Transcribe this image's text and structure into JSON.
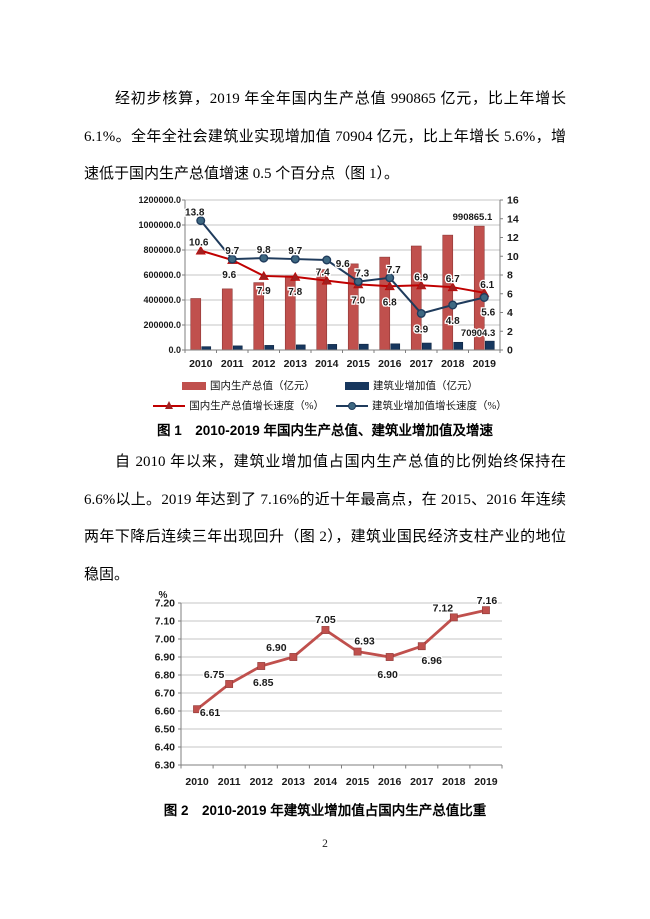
{
  "page_number": "2",
  "paragraphs": {
    "p1": "经初步核算，2019 年全年国内生产总值 990865 亿元，比上年增长 6.1%。全年全社会建筑业实现增加值 70904 亿元，比上年增长 5.6%，增速低于国内生产总值增速 0.5 个百分点（图 1）。",
    "p2": "自 2010 年以来，建筑业增加值占国内生产总值的比例始终保持在 6.6%以上。2019 年达到了 7.16%的近十年最高点，在 2015、2016 年连续两年下降后连续三年出现回升（图 2），建筑业国民经济支柱产业的地位稳固。"
  },
  "figure1": {
    "caption": "图 1　2010-2019 年国内生产总值、建筑业增加值及增速",
    "legend": [
      {
        "label": "国内生产总值（亿元）",
        "swatch": "bar",
        "color": "#C0504D"
      },
      {
        "label": "建筑业增加值（亿元）",
        "swatch": "bar",
        "color": "#17375E"
      },
      {
        "label": "国内生产总值增长速度（%）",
        "swatch": "line-triangle",
        "color": "#C00000",
        "marker_fill": "#A02020"
      },
      {
        "label": "建筑业增加值增长速度（%）",
        "swatch": "line-circle",
        "color": "#1F3B5C",
        "marker_fill": "#3E6882"
      }
    ]
  },
  "figure2": {
    "caption": "图 2　2010-2019 年建筑业增加值占国内生产总值比重"
  },
  "colors": {
    "grid": "#C6C6C6",
    "axis": "#7F7F7F",
    "label_text": "#1a1a1a",
    "page_bg": "#FFFFFF"
  },
  "chart_data": [
    {
      "type": "bar",
      "title": "2010-2019 年国内生产总值、建筑业增加值及增速",
      "categories": [
        "2010",
        "2011",
        "2012",
        "2013",
        "2014",
        "2015",
        "2016",
        "2017",
        "2018",
        "2019"
      ],
      "left_axis": {
        "min": 0,
        "max": 1200000,
        "step": 200000,
        "decimals": 1
      },
      "right_axis": {
        "min": 0,
        "max": 16,
        "step": 2,
        "decimals": 0
      },
      "grid": true,
      "legend_position": "bottom",
      "series": [
        {
          "name": "国内生产总值（亿元）",
          "kind": "bar",
          "axis": "left",
          "color": "#C0504D",
          "border": "#8C3836",
          "values": [
            412000,
            489000,
            539000,
            593000,
            643000,
            689000,
            743000,
            832000,
            919000,
            990865.1
          ],
          "end_label": {
            "text": "990865.1",
            "dx": 8,
            "dy": -6
          }
        },
        {
          "name": "建筑业增加值（亿元）",
          "kind": "bar",
          "axis": "left",
          "color": "#17375E",
          "border": "#0F2440",
          "values": [
            26700,
            33000,
            36900,
            40900,
            44900,
            46500,
            49500,
            55700,
            61800,
            70904.3
          ],
          "end_label": {
            "text": "70904.3",
            "dx": 11,
            "dy": -5
          }
        },
        {
          "name": "国内生产总值增长速度（%）",
          "kind": "line",
          "axis": "right",
          "color": "#C00000",
          "marker": "triangle",
          "marker_fill": "#A02020",
          "values": [
            10.6,
            9.6,
            7.9,
            7.8,
            7.4,
            7.0,
            6.8,
            6.9,
            6.7,
            6.1
          ],
          "label_decimals": 1,
          "label_offsets": [
            [
              -2,
              -8
            ],
            [
              -3,
              15
            ],
            [
              0,
              15
            ],
            [
              0,
              15
            ],
            [
              -4,
              -8
            ],
            [
              0,
              16
            ],
            [
              0,
              16
            ],
            [
              0,
              -8
            ],
            [
              0,
              -8
            ],
            [
              3,
              -8
            ]
          ]
        },
        {
          "name": "建筑业增加值增长速度（%）",
          "kind": "line",
          "axis": "right",
          "color": "#1F3B5C",
          "marker": "circle",
          "marker_fill": "#3E6882",
          "values": [
            13.8,
            9.7,
            9.8,
            9.7,
            9.6,
            7.3,
            7.7,
            3.9,
            4.8,
            5.6
          ],
          "label_decimals": 1,
          "label_offsets": [
            [
              -6,
              -8
            ],
            [
              0,
              -8
            ],
            [
              0,
              -8
            ],
            [
              0,
              -8
            ],
            [
              16,
              4
            ],
            [
              4,
              -8
            ],
            [
              4,
              -8
            ],
            [
              0,
              16
            ],
            [
              0,
              16
            ],
            [
              4,
              15
            ]
          ]
        }
      ]
    },
    {
      "type": "line",
      "title": "2010-2019 年建筑业增加值占国内生产总值比重",
      "categories": [
        "2010",
        "2011",
        "2012",
        "2013",
        "2014",
        "2015",
        "2016",
        "2017",
        "2018",
        "2019"
      ],
      "y_axis": {
        "min": 6.3,
        "max": 7.2,
        "step": 0.1,
        "decimals": 2,
        "unit": "%"
      },
      "grid": true,
      "series": [
        {
          "name": "建筑业增加值占国内生产总值比重",
          "kind": "line",
          "color": "#C0504D",
          "marker": "square",
          "marker_fill": "#C0504D",
          "values": [
            6.61,
            6.75,
            6.85,
            6.9,
            7.05,
            6.93,
            6.9,
            6.96,
            7.12,
            7.16
          ],
          "label_decimals": 2,
          "label_offsets": [
            [
              13,
              4
            ],
            [
              -15,
              -9
            ],
            [
              2,
              17
            ],
            [
              -17,
              -9
            ],
            [
              0,
              -10
            ],
            [
              7,
              -10
            ],
            [
              -2,
              18
            ],
            [
              10,
              15
            ],
            [
              -11,
              -9
            ],
            [
              1,
              -9
            ]
          ]
        }
      ]
    }
  ]
}
